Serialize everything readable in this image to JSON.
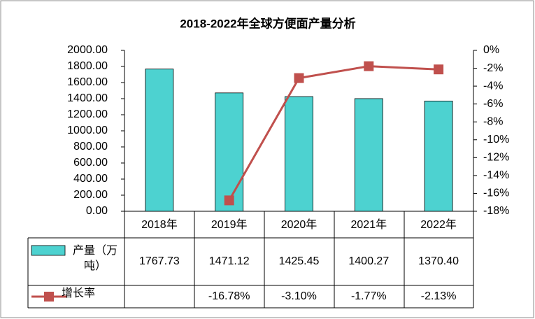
{
  "chart_data": {
    "type": "bar-line-table",
    "title": "2018-2022年全球方便面产量分析",
    "categories": [
      "2018年",
      "2019年",
      "2020年",
      "2021年",
      "2022年"
    ],
    "series": [
      {
        "name": "产量（万吨）",
        "type": "bar",
        "color": "#4dd2d0",
        "values": [
          1767.73,
          1471.12,
          1425.45,
          1400.27,
          1370.4
        ],
        "value_labels": [
          "1767.73",
          "1471.12",
          "1425.45",
          "1400.27",
          "1370.40"
        ]
      },
      {
        "name": "增长率",
        "type": "line",
        "axis": "y2",
        "color": "#c0504d",
        "values": [
          null,
          -16.78,
          -3.1,
          -1.77,
          -2.13
        ],
        "value_labels": [
          null,
          "-16.78%",
          "-3.10%",
          "-1.77%",
          "-2.13%"
        ]
      }
    ],
    "ylim": [
      0,
      2000
    ],
    "yticks": [
      {
        "value": 0,
        "label": "0.00"
      },
      {
        "value": 200,
        "label": "200.00"
      },
      {
        "value": 400,
        "label": "400.00"
      },
      {
        "value": 600,
        "label": "600.00"
      },
      {
        "value": 800,
        "label": "800.00"
      },
      {
        "value": 1000,
        "label": "1000.00"
      },
      {
        "value": 1200,
        "label": "1200.00"
      },
      {
        "value": 1400,
        "label": "1400.00"
      },
      {
        "value": 1600,
        "label": "1600.00"
      },
      {
        "value": 1800,
        "label": "1800.00"
      },
      {
        "value": 2000,
        "label": "2000.00"
      }
    ],
    "y2lim": [
      -18,
      0
    ],
    "y2ticks": [
      {
        "value": 0,
        "label": "0%"
      },
      {
        "value": -2,
        "label": "-2%"
      },
      {
        "value": -4,
        "label": "-4%"
      },
      {
        "value": -6,
        "label": "-6%"
      },
      {
        "value": -8,
        "label": "-8%"
      },
      {
        "value": -10,
        "label": "-10%"
      },
      {
        "value": -12,
        "label": "-12%"
      },
      {
        "value": -14,
        "label": "-14%"
      },
      {
        "value": -16,
        "label": "-16%"
      },
      {
        "value": -18,
        "label": "-18%"
      }
    ],
    "grid": false
  }
}
